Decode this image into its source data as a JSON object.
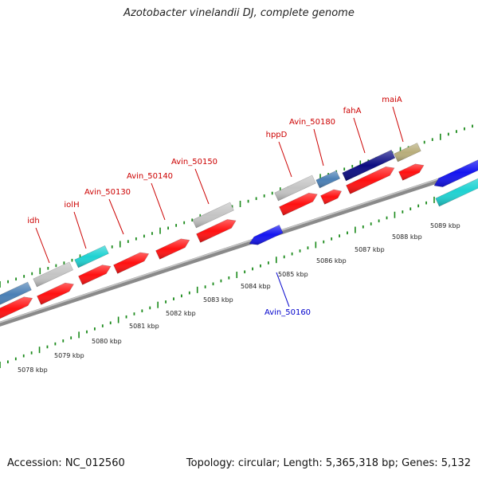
{
  "title": "Azotobacter vinelandii DJ, complete genome",
  "footer": {
    "accession": "Accession: NC_012560",
    "summary": "Topology: circular; Length: 5,365,318 bp; Genes: 5,132"
  },
  "colors": {
    "red": "#ff1010",
    "gray": "#c4c4c4",
    "cyan": "#1ed2d2",
    "steelblue": "#4a7fb5",
    "navy": "#0c0c82",
    "khaki": "#b8ad7a",
    "blue": "#1414f0",
    "backbone": "#8a8a8a",
    "tick": "#1a8a1a",
    "label_red": "#cc0000",
    "label_blue": "#0000cc"
  },
  "scale": {
    "ticks_kbp": [
      "5078 kbp",
      "5079 kbp",
      "5080 kbp",
      "5081 kbp",
      "5082 kbp",
      "5083 kbp",
      "5084 kbp",
      "5085 kbp",
      "5086 kbp",
      "5087 kbp",
      "5088 kbp",
      "5089 kbp"
    ]
  },
  "labels": [
    {
      "text": "idh",
      "color": "label_red"
    },
    {
      "text": "iolH",
      "color": "label_red"
    },
    {
      "text": "Avin_50130",
      "color": "label_red"
    },
    {
      "text": "Avin_50140",
      "color": "label_red"
    },
    {
      "text": "Avin_50150",
      "color": "label_red"
    },
    {
      "text": "hppD",
      "color": "label_red"
    },
    {
      "text": "Avin_50180",
      "color": "label_red"
    },
    {
      "text": "fahA",
      "color": "label_red"
    },
    {
      "text": "maiA",
      "color": "label_red"
    },
    {
      "text": "Avin_50160",
      "color": "label_blue"
    }
  ],
  "genes": [
    {
      "lane": "outer-top",
      "color": "steelblue"
    },
    {
      "lane": "outer-top",
      "color": "gray"
    },
    {
      "lane": "outer-top",
      "color": "cyan"
    },
    {
      "lane": "outer-top",
      "color": "gray"
    },
    {
      "lane": "outer-top",
      "color": "gray"
    },
    {
      "lane": "outer-top",
      "color": "steelblue"
    },
    {
      "lane": "outer-top",
      "color": "navy"
    },
    {
      "lane": "outer-top",
      "color": "khaki"
    },
    {
      "lane": "forward",
      "color": "red"
    },
    {
      "lane": "forward",
      "color": "red"
    },
    {
      "lane": "forward",
      "color": "red"
    },
    {
      "lane": "forward",
      "color": "red"
    },
    {
      "lane": "forward",
      "color": "red"
    },
    {
      "lane": "forward",
      "color": "red"
    },
    {
      "lane": "forward",
      "color": "red"
    },
    {
      "lane": "forward",
      "color": "red"
    },
    {
      "lane": "forward",
      "color": "red"
    },
    {
      "lane": "forward",
      "color": "red"
    },
    {
      "lane": "reverse",
      "color": "blue"
    },
    {
      "lane": "reverse",
      "color": "blue"
    },
    {
      "lane": "inner",
      "color": "cyan"
    }
  ]
}
